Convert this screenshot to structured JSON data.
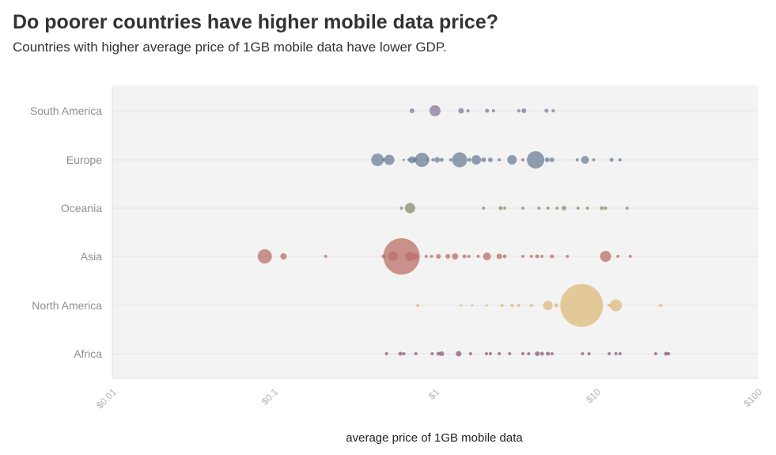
{
  "title": "Do poorer countries have higher mobile data price?",
  "subtitle": "Countries with higher average price of 1GB mobile data have lower GDP.",
  "chart_data": {
    "type": "scatter",
    "x_scale": "log",
    "xlim": [
      0.01,
      100
    ],
    "xlabel": "average price of 1GB mobile data",
    "xticks": [
      {
        "value": 0.01,
        "label": "$0.01"
      },
      {
        "value": 0.1,
        "label": "$0.1"
      },
      {
        "value": 1,
        "label": "$1"
      },
      {
        "value": 10,
        "label": "$10"
      },
      {
        "value": 100,
        "label": "$100"
      }
    ],
    "grid": true,
    "legend": "none",
    "categories": [
      "South America",
      "Europe",
      "Oceania",
      "Asia",
      "North America",
      "Africa"
    ],
    "series": [
      {
        "category": "South America",
        "color": "#85789a",
        "points": [
          {
            "x": 0.72,
            "r": 3
          },
          {
            "x": 1.0,
            "r": 7
          },
          {
            "x": 1.45,
            "r": 3.5
          },
          {
            "x": 1.6,
            "r": 2
          },
          {
            "x": 2.1,
            "r": 2.5
          },
          {
            "x": 2.3,
            "r": 2
          },
          {
            "x": 3.3,
            "r": 2
          },
          {
            "x": 3.55,
            "r": 3
          },
          {
            "x": 4.9,
            "r": 2.5
          },
          {
            "x": 5.4,
            "r": 2
          }
        ]
      },
      {
        "category": "Europe",
        "color": "#6d7f99",
        "points": [
          {
            "x": 0.44,
            "r": 8
          },
          {
            "x": 0.48,
            "r": 2
          },
          {
            "x": 0.52,
            "r": 6.5
          },
          {
            "x": 0.64,
            "r": 1.5
          },
          {
            "x": 0.69,
            "r": 2
          },
          {
            "x": 0.72,
            "r": 4.5
          },
          {
            "x": 0.75,
            "r": 3
          },
          {
            "x": 0.83,
            "r": 9
          },
          {
            "x": 0.9,
            "r": 2
          },
          {
            "x": 0.97,
            "r": 2
          },
          {
            "x": 1.03,
            "r": 3.5
          },
          {
            "x": 1.1,
            "r": 2.5
          },
          {
            "x": 1.25,
            "r": 2
          },
          {
            "x": 1.42,
            "r": 9.5
          },
          {
            "x": 1.63,
            "r": 2.5
          },
          {
            "x": 1.8,
            "r": 6
          },
          {
            "x": 2.0,
            "r": 3
          },
          {
            "x": 2.2,
            "r": 3
          },
          {
            "x": 2.5,
            "r": 2
          },
          {
            "x": 3.0,
            "r": 6
          },
          {
            "x": 3.5,
            "r": 2
          },
          {
            "x": 4.2,
            "r": 11
          },
          {
            "x": 4.95,
            "r": 3
          },
          {
            "x": 5.3,
            "r": 3
          },
          {
            "x": 7.6,
            "r": 2
          },
          {
            "x": 8.5,
            "r": 5
          },
          {
            "x": 9.6,
            "r": 2
          },
          {
            "x": 12.4,
            "r": 2.5
          },
          {
            "x": 14.0,
            "r": 2
          }
        ]
      },
      {
        "category": "Oceania",
        "color": "#8a8c6c",
        "points": [
          {
            "x": 0.62,
            "r": 2
          },
          {
            "x": 0.7,
            "r": 6.5
          },
          {
            "x": 2.0,
            "r": 2
          },
          {
            "x": 2.55,
            "r": 2.5
          },
          {
            "x": 2.7,
            "r": 2
          },
          {
            "x": 3.5,
            "r": 2
          },
          {
            "x": 4.4,
            "r": 2
          },
          {
            "x": 5.0,
            "r": 2
          },
          {
            "x": 5.7,
            "r": 2
          },
          {
            "x": 6.3,
            "r": 3
          },
          {
            "x": 7.7,
            "r": 2
          },
          {
            "x": 8.8,
            "r": 2
          },
          {
            "x": 10.8,
            "r": 2.5
          },
          {
            "x": 11.4,
            "r": 2
          },
          {
            "x": 15.5,
            "r": 2
          }
        ]
      },
      {
        "category": "Asia",
        "color": "#bb7068",
        "points": [
          {
            "x": 0.088,
            "r": 9
          },
          {
            "x": 0.115,
            "r": 4
          },
          {
            "x": 0.21,
            "r": 2
          },
          {
            "x": 0.48,
            "r": 2.5
          },
          {
            "x": 0.55,
            "r": 6
          },
          {
            "x": 0.62,
            "r": 23
          },
          {
            "x": 0.7,
            "r": 6
          },
          {
            "x": 0.76,
            "r": 4
          },
          {
            "x": 0.88,
            "r": 2
          },
          {
            "x": 0.95,
            "r": 2
          },
          {
            "x": 1.05,
            "r": 3
          },
          {
            "x": 1.2,
            "r": 3
          },
          {
            "x": 1.33,
            "r": 4
          },
          {
            "x": 1.52,
            "r": 2.5
          },
          {
            "x": 1.62,
            "r": 2
          },
          {
            "x": 1.85,
            "r": 2
          },
          {
            "x": 2.1,
            "r": 5
          },
          {
            "x": 2.5,
            "r": 3.5
          },
          {
            "x": 2.7,
            "r": 2.5
          },
          {
            "x": 3.5,
            "r": 2
          },
          {
            "x": 3.95,
            "r": 2
          },
          {
            "x": 4.3,
            "r": 2.5
          },
          {
            "x": 4.6,
            "r": 2
          },
          {
            "x": 5.3,
            "r": 2.5
          },
          {
            "x": 6.6,
            "r": 2
          },
          {
            "x": 11.4,
            "r": 7
          },
          {
            "x": 13.6,
            "r": 2
          },
          {
            "x": 16.2,
            "r": 2
          }
        ]
      },
      {
        "category": "North America",
        "color": "#ddb97a",
        "points": [
          {
            "x": 0.78,
            "r": 2
          },
          {
            "x": 1.45,
            "r": 1.5
          },
          {
            "x": 1.7,
            "r": 1.5
          },
          {
            "x": 2.1,
            "r": 1.5
          },
          {
            "x": 2.6,
            "r": 2
          },
          {
            "x": 3.0,
            "r": 2
          },
          {
            "x": 3.3,
            "r": 2
          },
          {
            "x": 3.95,
            "r": 2
          },
          {
            "x": 5.0,
            "r": 6
          },
          {
            "x": 5.65,
            "r": 2.5
          },
          {
            "x": 8.1,
            "r": 27
          },
          {
            "x": 12.0,
            "r": 2
          },
          {
            "x": 13.2,
            "r": 7.5
          },
          {
            "x": 25.0,
            "r": 2
          }
        ]
      },
      {
        "category": "Africa",
        "color": "#8a5e78",
        "points": [
          {
            "x": 0.5,
            "r": 2
          },
          {
            "x": 0.61,
            "r": 2.5
          },
          {
            "x": 0.64,
            "r": 2
          },
          {
            "x": 0.76,
            "r": 2
          },
          {
            "x": 0.96,
            "r": 2
          },
          {
            "x": 1.05,
            "r": 2.5
          },
          {
            "x": 1.1,
            "r": 3
          },
          {
            "x": 1.4,
            "r": 3.5
          },
          {
            "x": 1.66,
            "r": 2
          },
          {
            "x": 2.08,
            "r": 2
          },
          {
            "x": 2.2,
            "r": 2
          },
          {
            "x": 2.5,
            "r": 2
          },
          {
            "x": 2.9,
            "r": 2
          },
          {
            "x": 3.5,
            "r": 2
          },
          {
            "x": 3.8,
            "r": 2
          },
          {
            "x": 4.3,
            "r": 3
          },
          {
            "x": 4.6,
            "r": 2.5
          },
          {
            "x": 5.0,
            "r": 2.5
          },
          {
            "x": 5.3,
            "r": 2
          },
          {
            "x": 8.2,
            "r": 2
          },
          {
            "x": 9.0,
            "r": 2
          },
          {
            "x": 12.0,
            "r": 2
          },
          {
            "x": 13.2,
            "r": 2
          },
          {
            "x": 14.0,
            "r": 2
          },
          {
            "x": 23.3,
            "r": 2
          },
          {
            "x": 27.0,
            "r": 2.5
          },
          {
            "x": 28.0,
            "r": 2
          }
        ]
      }
    ]
  }
}
